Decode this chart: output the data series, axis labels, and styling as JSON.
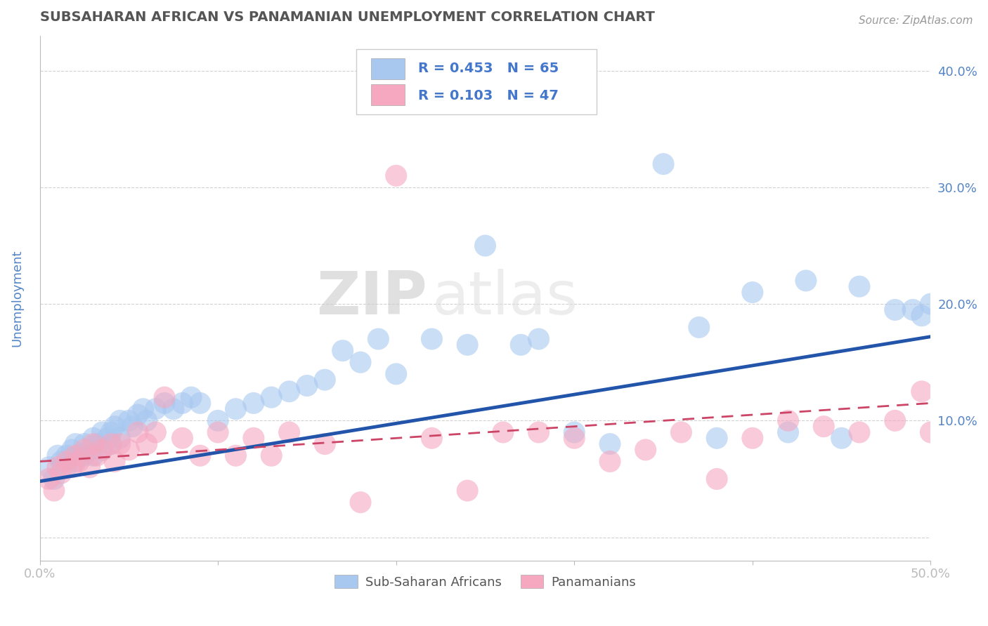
{
  "title": "SUBSAHARAN AFRICAN VS PANAMANIAN UNEMPLOYMENT CORRELATION CHART",
  "source": "Source: ZipAtlas.com",
  "ylabel": "Unemployment",
  "xlim": [
    0.0,
    0.5
  ],
  "ylim": [
    -0.02,
    0.43
  ],
  "yticks": [
    0.0,
    0.1,
    0.2,
    0.3,
    0.4
  ],
  "xticks": [
    0.0,
    0.1,
    0.2,
    0.3,
    0.4,
    0.5
  ],
  "blue_color": "#A8C8F0",
  "pink_color": "#F5A8C0",
  "blue_line_color": "#2255AA",
  "pink_line_color": "#CC4466",
  "legend_r_color": "#4477CC",
  "R_blue": 0.453,
  "N_blue": 65,
  "R_pink": 0.103,
  "N_pink": 47,
  "blue_scatter_x": [
    0.005,
    0.008,
    0.01,
    0.012,
    0.015,
    0.015,
    0.018,
    0.02,
    0.02,
    0.022,
    0.025,
    0.025,
    0.028,
    0.03,
    0.03,
    0.032,
    0.035,
    0.035,
    0.038,
    0.04,
    0.04,
    0.042,
    0.045,
    0.045,
    0.05,
    0.052,
    0.055,
    0.058,
    0.06,
    0.065,
    0.07,
    0.075,
    0.08,
    0.085,
    0.09,
    0.1,
    0.11,
    0.12,
    0.13,
    0.14,
    0.15,
    0.16,
    0.17,
    0.18,
    0.19,
    0.2,
    0.22,
    0.24,
    0.25,
    0.27,
    0.28,
    0.3,
    0.32,
    0.35,
    0.37,
    0.38,
    0.4,
    0.42,
    0.43,
    0.45,
    0.46,
    0.48,
    0.49,
    0.495,
    0.5
  ],
  "blue_scatter_y": [
    0.06,
    0.05,
    0.07,
    0.065,
    0.07,
    0.06,
    0.075,
    0.08,
    0.065,
    0.07,
    0.08,
    0.07,
    0.075,
    0.085,
    0.07,
    0.08,
    0.09,
    0.075,
    0.085,
    0.09,
    0.08,
    0.095,
    0.1,
    0.085,
    0.1,
    0.095,
    0.105,
    0.11,
    0.1,
    0.11,
    0.115,
    0.11,
    0.115,
    0.12,
    0.115,
    0.1,
    0.11,
    0.115,
    0.12,
    0.125,
    0.13,
    0.135,
    0.16,
    0.15,
    0.17,
    0.14,
    0.17,
    0.165,
    0.25,
    0.165,
    0.17,
    0.09,
    0.08,
    0.32,
    0.18,
    0.085,
    0.21,
    0.09,
    0.22,
    0.085,
    0.215,
    0.195,
    0.195,
    0.19,
    0.2
  ],
  "pink_scatter_x": [
    0.005,
    0.008,
    0.01,
    0.012,
    0.015,
    0.018,
    0.02,
    0.022,
    0.025,
    0.028,
    0.03,
    0.032,
    0.035,
    0.04,
    0.042,
    0.045,
    0.05,
    0.055,
    0.06,
    0.065,
    0.07,
    0.08,
    0.09,
    0.1,
    0.11,
    0.12,
    0.13,
    0.14,
    0.16,
    0.18,
    0.2,
    0.22,
    0.24,
    0.26,
    0.28,
    0.3,
    0.32,
    0.34,
    0.36,
    0.38,
    0.4,
    0.42,
    0.44,
    0.46,
    0.48,
    0.495,
    0.5
  ],
  "pink_scatter_y": [
    0.05,
    0.04,
    0.06,
    0.055,
    0.065,
    0.06,
    0.07,
    0.065,
    0.075,
    0.06,
    0.08,
    0.07,
    0.075,
    0.08,
    0.065,
    0.08,
    0.075,
    0.09,
    0.08,
    0.09,
    0.12,
    0.085,
    0.07,
    0.09,
    0.07,
    0.085,
    0.07,
    0.09,
    0.08,
    0.03,
    0.31,
    0.085,
    0.04,
    0.09,
    0.09,
    0.085,
    0.065,
    0.075,
    0.09,
    0.05,
    0.085,
    0.1,
    0.095,
    0.09,
    0.1,
    0.125,
    0.09
  ],
  "watermark_zip": "ZIP",
  "watermark_atlas": "atlas",
  "background_color": "#FFFFFF",
  "grid_color": "#CCCCCC",
  "title_color": "#555555",
  "axis_label_color": "#5585C5"
}
